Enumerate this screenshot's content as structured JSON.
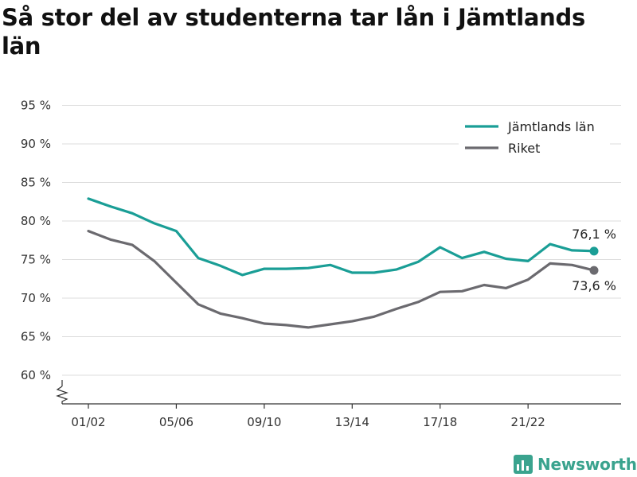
{
  "title": "Så stor del av studenterna tar lån i Jämtlands län",
  "brand": {
    "name": "Newsworthy",
    "icon": "newsworthy-logo-icon",
    "color": "#3aa38e"
  },
  "chart_data": {
    "type": "line",
    "title": "Så stor del av studenterna tar lån i Jämtlands län",
    "xlabel": "",
    "ylabel": "",
    "ylim": [
      57,
      96
    ],
    "y_ticks": [
      60,
      65,
      70,
      75,
      80,
      85,
      90,
      95
    ],
    "y_tick_suffix": " %",
    "axis_break": true,
    "grid": true,
    "legend_position": "top-right",
    "x": [
      "01/02",
      "02/03",
      "03/04",
      "04/05",
      "05/06",
      "06/07",
      "07/08",
      "08/09",
      "09/10",
      "10/11",
      "11/12",
      "12/13",
      "13/14",
      "14/15",
      "15/16",
      "16/17",
      "17/18",
      "18/19",
      "19/20",
      "20/21",
      "21/22",
      "22/23",
      "23/24",
      "24/25"
    ],
    "x_tick_labels": [
      "01/02",
      "05/06",
      "09/10",
      "13/14",
      "17/18",
      "21/22"
    ],
    "series": [
      {
        "name": "Jämtlands län",
        "color": "#1a9e96",
        "values": [
          82.9,
          81.9,
          81.0,
          79.7,
          78.7,
          75.2,
          74.2,
          73.0,
          73.8,
          73.8,
          73.9,
          74.3,
          73.3,
          73.3,
          73.7,
          74.7,
          76.6,
          75.2,
          76.0,
          75.1,
          74.8,
          77.0,
          76.2,
          76.1
        ],
        "end_label": "76,1 %"
      },
      {
        "name": "Riket",
        "color": "#6b6a6f",
        "values": [
          78.7,
          77.6,
          76.9,
          74.8,
          72.0,
          69.2,
          68.0,
          67.4,
          66.7,
          66.5,
          66.2,
          66.6,
          67.0,
          67.6,
          68.6,
          69.5,
          70.8,
          70.9,
          71.7,
          71.3,
          72.4,
          74.5,
          74.3,
          73.6
        ],
        "end_label": "73,6 %"
      }
    ]
  }
}
